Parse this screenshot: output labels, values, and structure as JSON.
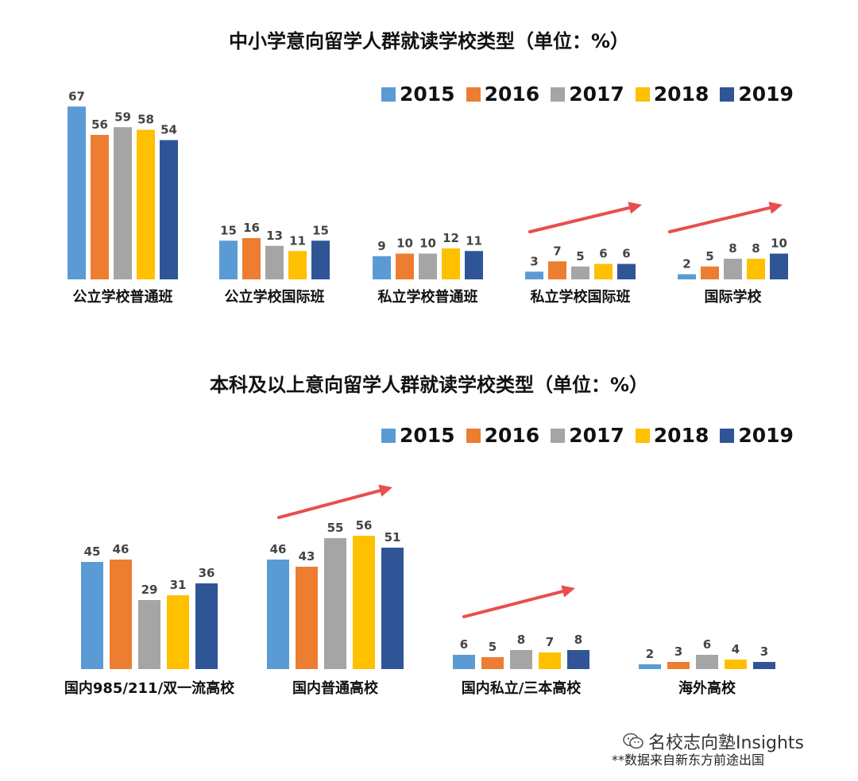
{
  "colors": {
    "2015": "#5b9bd5",
    "2016": "#ed7d31",
    "2017": "#a5a5a5",
    "2018": "#ffc000",
    "2019": "#2f5597",
    "arrow": "#e84e4e"
  },
  "chart_data": [
    {
      "type": "bar",
      "title": "中小学意向留学人群就读学校类型（单位：%）",
      "categories": [
        "公立学校普通班",
        "公立学校国际班",
        "私立学校普通班",
        "私立学校国际班",
        "国际学校"
      ],
      "series": [
        {
          "name": "2015",
          "values": [
            67,
            15,
            9,
            3,
            2
          ]
        },
        {
          "name": "2016",
          "values": [
            56,
            16,
            10,
            7,
            5
          ]
        },
        {
          "name": "2017",
          "values": [
            59,
            13,
            10,
            5,
            8
          ]
        },
        {
          "name": "2018",
          "values": [
            58,
            11,
            12,
            6,
            8
          ]
        },
        {
          "name": "2019",
          "values": [
            54,
            15,
            11,
            6,
            10
          ]
        }
      ],
      "legend": "top-right",
      "grid": false
    },
    {
      "type": "bar",
      "title": "本科及以上意向留学人群就读学校类型（单位：%）",
      "categories": [
        "国内985/211/双一流高校",
        "国内普通高校",
        "国内私立/三本高校",
        "海外高校"
      ],
      "series": [
        {
          "name": "2015",
          "values": [
            45,
            46,
            6,
            2
          ]
        },
        {
          "name": "2016",
          "values": [
            46,
            43,
            5,
            3
          ]
        },
        {
          "name": "2017",
          "values": [
            29,
            55,
            8,
            6
          ]
        },
        {
          "name": "2018",
          "values": [
            31,
            56,
            7,
            4
          ]
        },
        {
          "name": "2019",
          "values": [
            36,
            51,
            8,
            3
          ]
        }
      ],
      "legend": "top-right",
      "grid": false
    }
  ],
  "footer": {
    "brand": "名校志向塾Insights",
    "note": "**数据来自新东方前途出国"
  }
}
